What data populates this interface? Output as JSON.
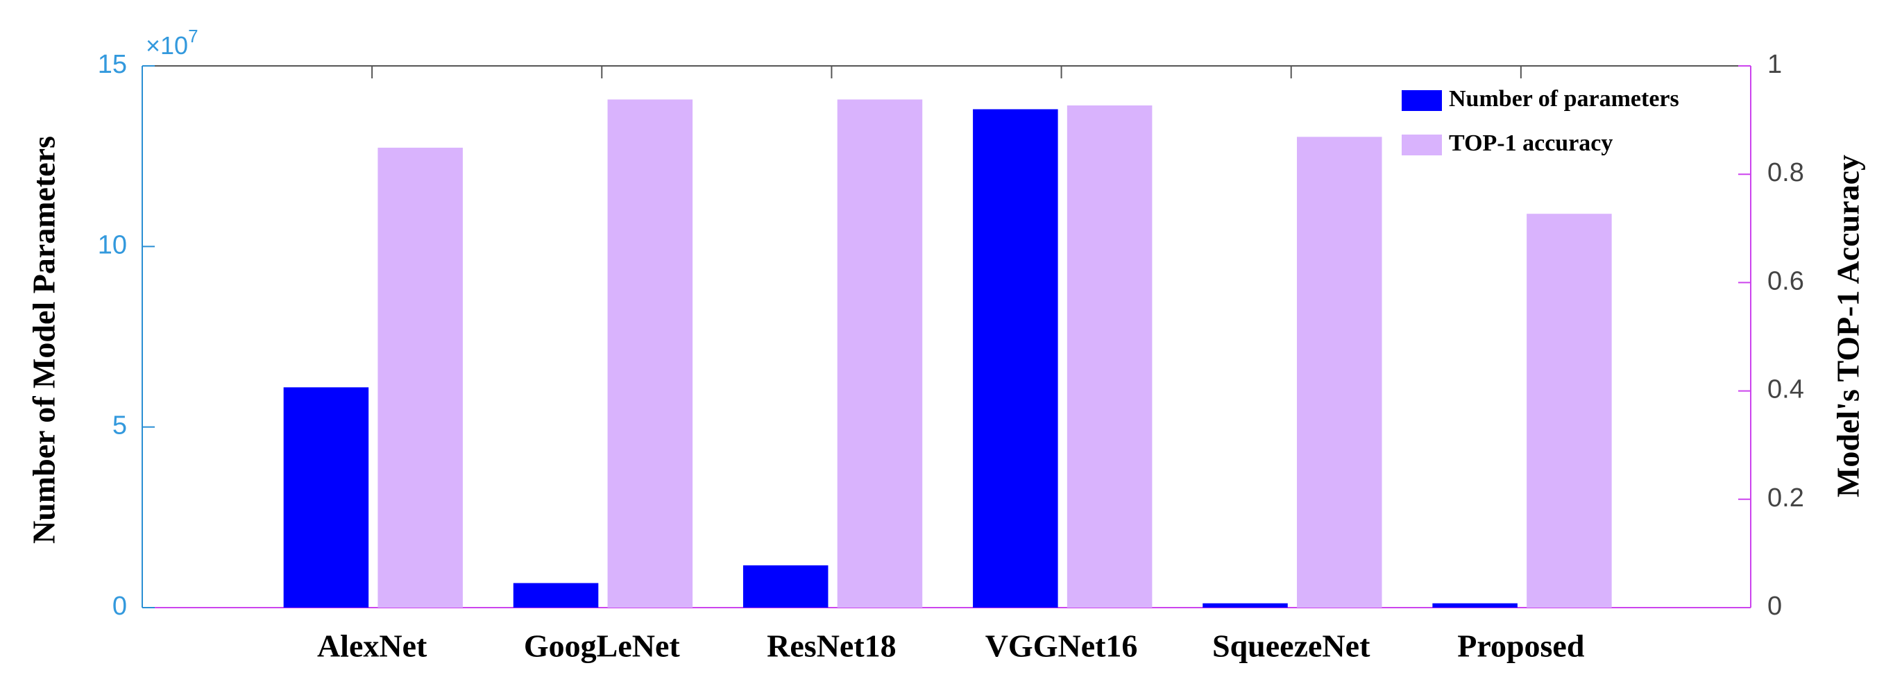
{
  "chart_data": {
    "type": "bar",
    "y_label": "Number of Model Parameters",
    "y2_label": "Model's TOP-1 Accuracy",
    "y_multiplier": "×10",
    "y_multiplier_exponent": "7",
    "categories": [
      "AlexNet",
      "GoogLeNet",
      "ResNet18",
      "VGGNet16",
      "SqueezeNet",
      "Proposed"
    ],
    "series": [
      {
        "name": "Number of parameters",
        "color": "#0000ff",
        "axis": "y",
        "values": [
          6.1,
          0.68,
          1.17,
          13.8,
          0.12,
          0.12
        ]
      },
      {
        "name": "TOP-1 accuracy",
        "color": "#d9b3fd",
        "axis": "y2",
        "values": [
          0.849,
          0.938,
          0.938,
          0.927,
          0.869,
          0.727
        ]
      }
    ],
    "ylim": [
      0,
      15
    ],
    "yticks": [
      0,
      5,
      10,
      15
    ],
    "y2lim": [
      0,
      1
    ],
    "y2ticks": [
      0,
      0.2,
      0.4,
      0.6,
      0.8,
      1
    ],
    "legend": "upper right",
    "grid": false
  }
}
